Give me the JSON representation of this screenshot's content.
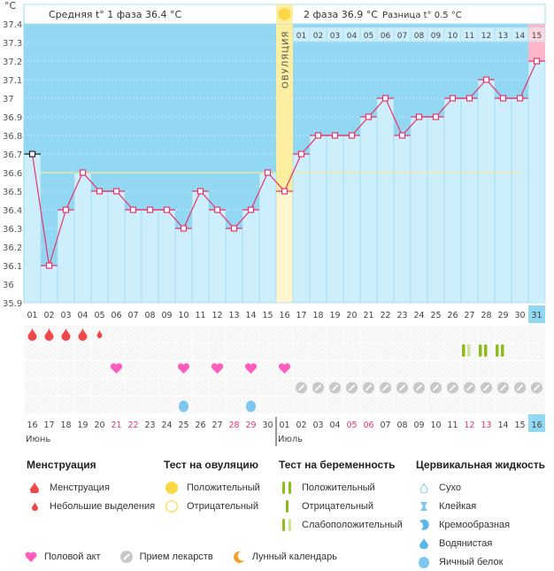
{
  "header": {
    "unit": "°C",
    "phase1_label": "Средняя t° 1 фаза 36.4 °C",
    "phase2_label": "2 фаза 36.9 °C",
    "difference_label": "Разница t° 0.5 °C",
    "ovulation_label": "ОВУЛЯЦИЯ"
  },
  "chart_data": {
    "type": "line",
    "title": "",
    "xlabel": "",
    "ylabel": "°C",
    "ylim": [
      35.9,
      37.4
    ],
    "yticks": [
      "37.4",
      "37.3",
      "37.2",
      "37.1",
      "37",
      "36.9",
      "36.8",
      "36.7",
      "36.6",
      "36.5",
      "36.4",
      "36.3",
      "36.2",
      "36.1",
      "36",
      "35.9"
    ],
    "cycle_days": [
      "01",
      "02",
      "03",
      "04",
      "05",
      "06",
      "07",
      "08",
      "09",
      "10",
      "11",
      "12",
      "13",
      "14",
      "15",
      "16",
      "17",
      "18",
      "19",
      "20",
      "21",
      "22",
      "23",
      "24",
      "25",
      "26",
      "27",
      "28",
      "29",
      "30",
      "31"
    ],
    "phase2_day_numbers": [
      "01",
      "02",
      "03",
      "04",
      "05",
      "06",
      "07",
      "08",
      "09",
      "10",
      "11",
      "12",
      "13",
      "14",
      "15"
    ],
    "series": [
      {
        "name": "Базальная температура",
        "values": [
          36.7,
          36.1,
          36.4,
          36.6,
          36.5,
          36.5,
          36.4,
          36.4,
          36.4,
          36.3,
          36.5,
          36.4,
          36.3,
          36.4,
          36.6,
          36.5,
          36.7,
          36.8,
          36.8,
          36.8,
          36.9,
          37.0,
          36.8,
          36.9,
          36.9,
          37.0,
          37.0,
          37.1,
          37.0,
          37.0,
          37.2
        ]
      }
    ],
    "coverline": 36.6,
    "ovulation_day": 16,
    "highlighted_day": 31,
    "calendar_dates": [
      "16",
      "17",
      "18",
      "19",
      "20",
      "21",
      "22",
      "23",
      "24",
      "25",
      "26",
      "27",
      "28",
      "29",
      "30",
      "01",
      "02",
      "03",
      "04",
      "05",
      "06",
      "07",
      "08",
      "09",
      "10",
      "11",
      "12",
      "13",
      "14",
      "15",
      "16"
    ],
    "weekend_indices": [
      5,
      6,
      12,
      13,
      19,
      20,
      26,
      27
    ],
    "months": [
      {
        "label": "Июнь",
        "start_index": 0
      },
      {
        "label": "Июль",
        "start_index": 15
      }
    ],
    "menstruation": {
      "heavy_days": [
        1,
        2,
        3,
        4
      ],
      "spotting_days": [
        5
      ]
    },
    "intercourse_days": [
      6,
      10,
      12,
      14,
      16
    ],
    "pregnancy_tests": [
      {
        "day": 27,
        "type": "negative"
      },
      {
        "day": 28,
        "type": "weak"
      },
      {
        "day": 29,
        "type": "positive"
      },
      {
        "day": 30,
        "type": "positive"
      }
    ],
    "pregnancy_tests_rendering": [
      {
        "day": 27,
        "bars": [
          "strong"
        ]
      },
      {
        "day": 27.5,
        "bars": [
          "weak"
        ]
      }
    ],
    "medication_days": [
      17,
      18,
      19,
      20,
      21,
      22,
      23,
      24,
      25,
      26,
      27,
      28,
      29,
      30,
      31
    ],
    "cervical_fluid": [
      {
        "day": 10,
        "type": "egg-white"
      },
      {
        "day": 14,
        "type": "egg-white"
      }
    ],
    "colors": {
      "bg_dark": "#92d8f2",
      "bg_light": "#cdeefb",
      "ovulation": "#fdeea0",
      "line": "#e8336b",
      "highlight_pink": "#ffb6c9",
      "coverline": "#f3ec9a",
      "weekend": "#e8336b",
      "blood": "#f04848",
      "heart": "#ff5cbd",
      "pill": "#c8c8c8",
      "test_green": "#8cbc1a",
      "test_light": "#cde69a",
      "fluid_blue": "#7cc6ef"
    }
  },
  "legend": {
    "menstruation": {
      "title": "Менструация",
      "items": [
        "Менструация",
        "Небольшие выделения"
      ]
    },
    "ovulation_test": {
      "title": "Тест на овуляцию",
      "items": [
        "Положительный",
        "Отрицательный"
      ]
    },
    "pregnancy_test": {
      "title": "Тест на беременность",
      "items": [
        "Положительный",
        "Отрицательный",
        "Слабоположительный"
      ]
    },
    "cervical_fluid": {
      "title": "Цервикальная жидкость",
      "items": [
        "Сухо",
        "Клейкая",
        "Кремообразная",
        "Водянистая",
        "Яичный белок"
      ]
    },
    "bottom": [
      "Половой акт",
      "Прием лекарств",
      "Лунный календарь"
    ]
  }
}
